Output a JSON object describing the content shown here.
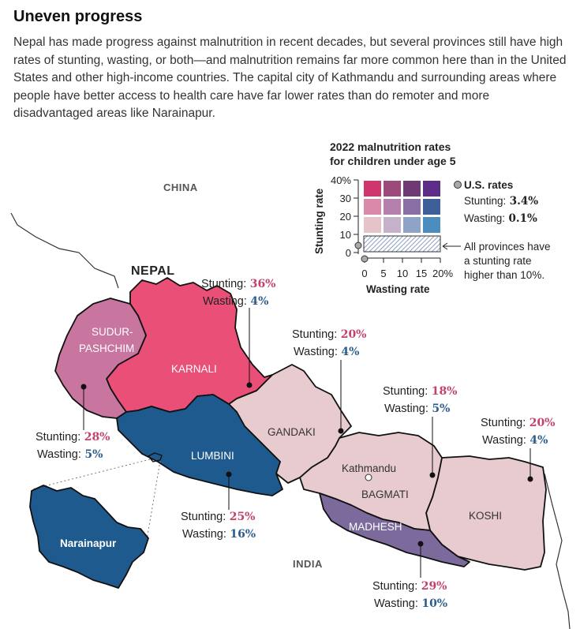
{
  "header": {
    "title": "Uneven progress",
    "intro": "Nepal has made progress against malnutrition in recent decades, but several provinces still have high rates of stunting, wasting, or both—and malnutrition remains far more common here than in the United States and other high-income countries. The capital city of Kathmandu and surrounding areas where people have better access to health care have far lower rates than do remoter and more disadvantaged areas like Narainapur."
  },
  "colors": {
    "stunting_value": "#c2426b",
    "wasting_value": "#2d5d8a",
    "karnali": "#ea4f78",
    "sudurpashchim": "#c8759f",
    "lumbini": "#1e5a8e",
    "madhesh": "#7d6a9c",
    "light_provinces": "#e8cbcf"
  },
  "map": {
    "countries": {
      "china": "CHINA",
      "india": "INDIA",
      "nepal": "NEPAL"
    },
    "city": "Kathmandu",
    "inset_label": "Narainapur",
    "stunting_label": "Stunting:",
    "wasting_label": "Wasting:",
    "provinces": [
      {
        "name": "KARNALI",
        "stunting": "36%",
        "wasting": "4%"
      },
      {
        "name_line1": "SUDUR-",
        "name_line2": "PASHCHIM",
        "stunting": "28%",
        "wasting": "5%"
      },
      {
        "name": "LUMBINI",
        "stunting": "25%",
        "wasting": "16%"
      },
      {
        "name": "GANDAKI",
        "stunting": "20%",
        "wasting": "4%"
      },
      {
        "name": "BAGMATI",
        "stunting": "18%",
        "wasting": "5%"
      },
      {
        "name": "KOSHI",
        "stunting": "20%",
        "wasting": "4%"
      },
      {
        "name": "MADHESH",
        "stunting": "29%",
        "wasting": "10%"
      }
    ]
  },
  "legend": {
    "title_line1": "2022 malnutrition rates",
    "title_line2": "for children under age 5",
    "y_label": "Stunting rate",
    "x_label": "Wasting rate",
    "y_ticks": [
      "40%",
      "30",
      "20",
      "10",
      "0"
    ],
    "x_ticks": [
      "0",
      "5",
      "10",
      "15",
      "20%"
    ],
    "grid_colors": [
      [
        "#d0366e",
        "#9c4a7c",
        "#6f3a74",
        "#5b2d86"
      ],
      [
        "#d98aaa",
        "#b481ad",
        "#8a6fa6",
        "#3f5f98"
      ],
      [
        "#e6c3c9",
        "#c6b1cb",
        "#8fa3c6",
        "#4c8dc0"
      ]
    ],
    "us": {
      "heading": "U.S. rates",
      "stunting_label": "Stunting:",
      "stunting_value": "3.4%",
      "wasting_label": "Wasting:",
      "wasting_value": "0.1%"
    },
    "note_lines": [
      "All provinces have",
      "a stunting rate",
      "higher than 10%."
    ]
  }
}
